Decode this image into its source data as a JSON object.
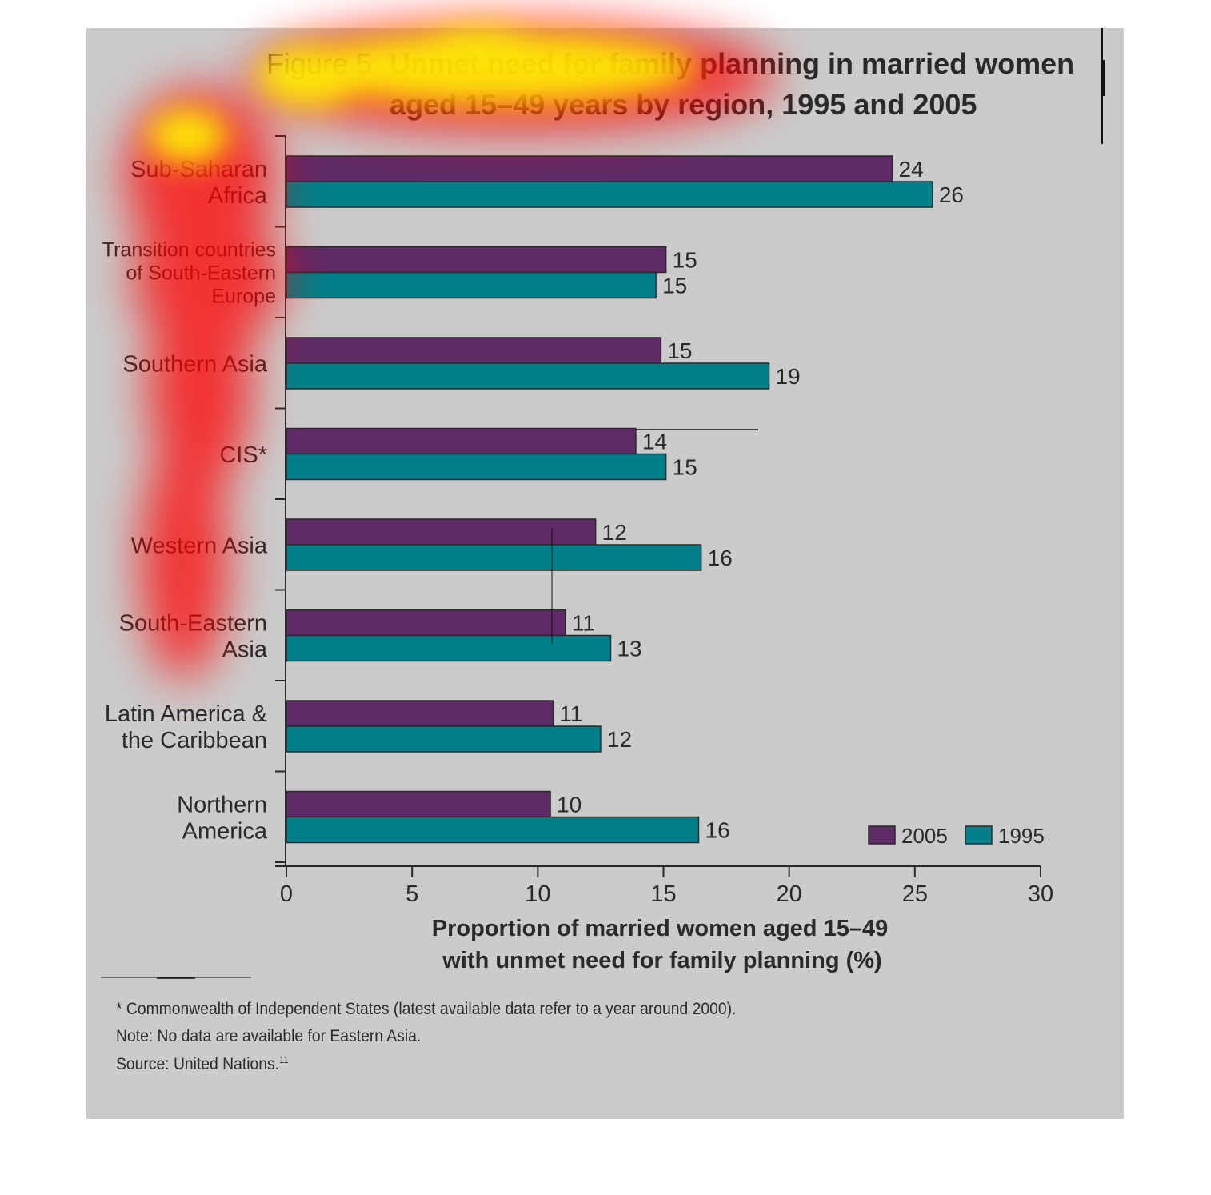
{
  "figure": {
    "label": "Figure 5",
    "title_line1": "Unmet need for family planning in married women",
    "title_line2": "aged 15–49 years by region, 1995 and 2005"
  },
  "chart_data": {
    "type": "bar",
    "orientation": "horizontal",
    "categories": [
      [
        "Sub-Saharan",
        "Africa"
      ],
      [
        "Transition countries",
        "of South-Eastern",
        "Europe"
      ],
      [
        "Southern Asia"
      ],
      [
        "CIS*"
      ],
      [
        "Western Asia"
      ],
      [
        "South-Eastern",
        "Asia"
      ],
      [
        "Latin America &",
        "the Caribbean"
      ],
      [
        "Northern",
        "America"
      ]
    ],
    "series": [
      {
        "name": "2005",
        "color": "#5e2b67",
        "values": [
          24.1,
          15.1,
          14.9,
          13.9,
          12.3,
          11.1,
          10.6,
          10.5
        ],
        "labels": [
          "24",
          "15",
          "15",
          "14",
          "12",
          "11",
          "11",
          "10"
        ]
      },
      {
        "name": "1995",
        "color": "#007f8a",
        "values": [
          25.7,
          14.7,
          19.2,
          15.1,
          16.5,
          12.9,
          12.5,
          16.4
        ],
        "labels": [
          "26",
          "15",
          "19",
          "15",
          "16",
          "13",
          "12",
          "16"
        ]
      }
    ],
    "xlim": [
      0,
      30
    ],
    "xticks": [
      "0",
      "5",
      "10",
      "15",
      "20",
      "25",
      "30"
    ],
    "xlabel_line1": "Proportion of married women aged 15–49",
    "xlabel_line2": "with unmet need for family planning (%)",
    "legend": {
      "placement": "bottom-right",
      "entries": [
        "2005",
        "1995"
      ]
    },
    "grid": false
  },
  "footnotes": {
    "cis": "* Commonwealth of Independent States (latest available data refer to a year around 2000).",
    "note": "Note: No data are available for Eastern Asia.",
    "source": "Source: United Nations.",
    "source_ref": "11"
  },
  "overlay": {
    "type": "attention-heatmap",
    "colors": [
      "#ff0000",
      "#ffff00"
    ]
  }
}
